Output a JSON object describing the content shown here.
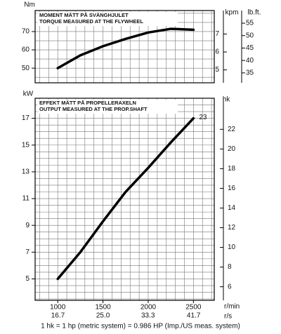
{
  "chart_data": [
    {
      "type": "line",
      "title": "MOMENT MÄTT PÅ SVÄNGHJULET",
      "subtitle": "TORQUE MEASURED AT THE FLYWHEEL",
      "ylabel": "Nm",
      "y2label": "kpm",
      "y3label": "lb.ft.",
      "x": [
        1000,
        1250,
        1500,
        1750,
        2000,
        2250,
        2500
      ],
      "values": [
        50,
        57,
        62,
        66,
        69.5,
        71.5,
        71
      ],
      "color": "#000000",
      "xlim": [
        750,
        2730
      ],
      "ylim": [
        42,
        81.5
      ],
      "yticks": [
        50,
        60,
        70
      ],
      "y2lim": [
        4.28,
        8.31
      ],
      "y2ticks": [
        5,
        6,
        7
      ],
      "y3lim": [
        31.0,
        60.1
      ],
      "y3ticks": [
        35,
        40,
        45,
        50,
        55
      ],
      "grid": true,
      "xgrid": [
        800,
        900,
        1000,
        1100,
        1200,
        1300,
        1400,
        1500,
        1600,
        1700,
        1800,
        1900,
        2000,
        2100,
        2200,
        2300,
        2400,
        2500,
        2600,
        2700
      ],
      "ygrid": [
        45,
        50,
        55,
        60,
        65,
        70,
        75,
        80
      ]
    },
    {
      "type": "line",
      "title": "EFFEKT MÄTT PÅ PROPELLERAXELN",
      "subtitle": "OUTPUT MEASURED AT THE PROP.SHAFT",
      "ylabel": "kW",
      "y2label": "hk",
      "xlabel": "r/min",
      "x2label": "r/s",
      "annotation": "23",
      "x": [
        1000,
        1250,
        1500,
        1750,
        2000,
        2250,
        2500
      ],
      "values": [
        5,
        7,
        9.3,
        11.5,
        13.3,
        15.2,
        17
      ],
      "color": "#000000",
      "xlim": [
        750,
        2730
      ],
      "xticks": [
        1000,
        1500,
        2000,
        2500
      ],
      "x2lim": [
        12.5,
        45.5
      ],
      "x2ticks": [
        16.7,
        {
          "value": 25,
          "label": "25.0"
        },
        33.3,
        41.7
      ],
      "ylim": [
        3.4,
        18.5
      ],
      "yticks": [
        5,
        7,
        9,
        11,
        13,
        15,
        17
      ],
      "y2lim": [
        4.62,
        25.16
      ],
      "y2ticks": [
        6,
        8,
        10,
        12,
        14,
        16,
        18,
        20,
        22
      ],
      "grid": true,
      "xgrid": [
        800,
        900,
        1000,
        1100,
        1200,
        1300,
        1400,
        1500,
        1600,
        1700,
        1800,
        1900,
        2000,
        2100,
        2200,
        2300,
        2400,
        2500,
        2600,
        2700
      ],
      "ygrid": [
        3.5,
        4,
        4.5,
        5,
        5.5,
        6,
        6.5,
        7,
        7.5,
        8,
        8.5,
        9,
        9.5,
        10,
        10.5,
        11,
        11.5,
        12,
        12.5,
        13,
        13.5,
        14,
        14.5,
        15,
        15.5,
        16,
        16.5,
        17,
        17.5,
        18,
        18.5
      ]
    }
  ],
  "footer": "1 hk = 1 hp (metric system) = 0.986 HP (Imp./US meas. system)"
}
